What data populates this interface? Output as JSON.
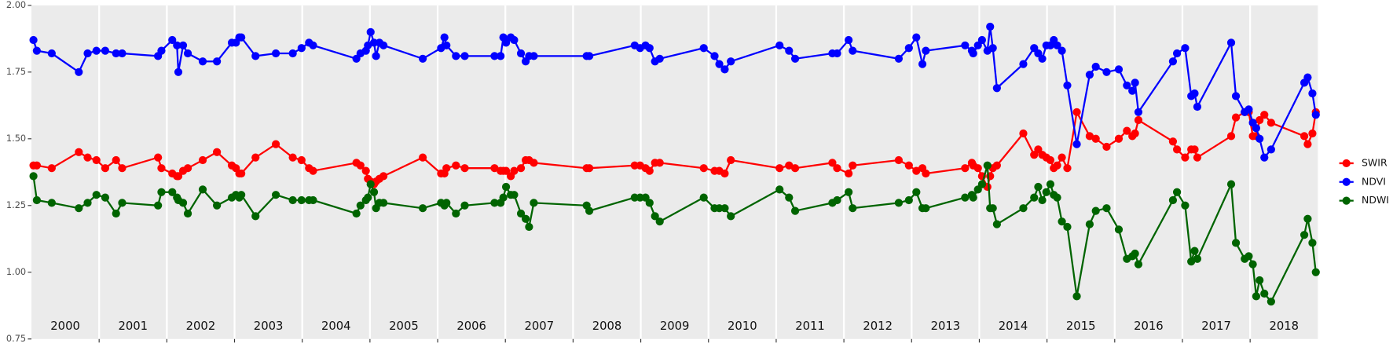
{
  "chart_data": {
    "type": "line",
    "x": [
      2000.03,
      2000.08,
      2000.3,
      2000.7,
      2000.83,
      2000.96,
      2001.09,
      2001.25,
      2001.34,
      2001.87,
      2001.92,
      2002.08,
      2002.15,
      2002.17,
      2002.24,
      2002.31,
      2002.53,
      2002.74,
      2002.96,
      2003.02,
      2003.07,
      2003.1,
      2003.31,
      2003.61,
      2003.86,
      2003.99,
      2004.1,
      2004.16,
      2004.8,
      2004.86,
      2004.94,
      2004.97,
      2005.01,
      2005.06,
      2005.09,
      2005.14,
      2005.2,
      2005.78,
      2006.05,
      2006.1,
      2006.13,
      2006.27,
      2006.4,
      2006.84,
      2006.93,
      2006.97,
      2007.01,
      2007.08,
      2007.13,
      2007.23,
      2007.3,
      2007.35,
      2007.42,
      2008.2,
      2008.24,
      2008.91,
      2008.99,
      2009.07,
      2009.13,
      2009.21,
      2009.28,
      2009.93,
      2010.09,
      2010.16,
      2010.24,
      2010.33,
      2011.05,
      2011.19,
      2011.28,
      2011.83,
      2011.9,
      2012.07,
      2012.13,
      2012.81,
      2012.96,
      2013.07,
      2013.16,
      2013.21,
      2013.79,
      2013.89,
      2013.91,
      2013.98,
      2014.04,
      2014.12,
      2014.16,
      2014.2,
      2014.26,
      2014.65,
      2014.81,
      2014.87,
      2014.93,
      2014.99,
      2015.05,
      2015.1,
      2015.15,
      2015.22,
      2015.3,
      2015.44,
      2015.63,
      2015.72,
      2015.88,
      2016.06,
      2016.18,
      2016.26,
      2016.3,
      2016.35,
      2016.86,
      2016.92,
      2017.04,
      2017.13,
      2017.18,
      2017.22,
      2017.72,
      2017.79,
      2017.92,
      2017.98,
      2018.04,
      2018.09,
      2018.14,
      2018.21,
      2018.31,
      2018.8,
      2018.85,
      2018.92,
      2018.97
    ],
    "series": [
      {
        "name": "SWIR",
        "color": "#ff0000",
        "values": [
          1.4,
          1.4,
          1.39,
          1.45,
          1.43,
          1.42,
          1.39,
          1.42,
          1.39,
          1.43,
          1.39,
          1.37,
          1.36,
          1.36,
          1.38,
          1.39,
          1.42,
          1.45,
          1.4,
          1.39,
          1.37,
          1.37,
          1.43,
          1.48,
          1.43,
          1.42,
          1.39,
          1.38,
          1.41,
          1.4,
          1.38,
          1.35,
          1.34,
          1.33,
          1.34,
          1.35,
          1.36,
          1.43,
          1.37,
          1.37,
          1.39,
          1.4,
          1.39,
          1.39,
          1.38,
          1.38,
          1.38,
          1.36,
          1.38,
          1.39,
          1.42,
          1.42,
          1.41,
          1.39,
          1.39,
          1.4,
          1.4,
          1.39,
          1.38,
          1.41,
          1.41,
          1.39,
          1.38,
          1.38,
          1.37,
          1.42,
          1.39,
          1.4,
          1.39,
          1.41,
          1.39,
          1.37,
          1.4,
          1.42,
          1.4,
          1.38,
          1.39,
          1.37,
          1.39,
          1.41,
          1.4,
          1.39,
          1.36,
          1.32,
          1.36,
          1.39,
          1.4,
          1.52,
          1.44,
          1.46,
          1.44,
          1.43,
          1.42,
          1.39,
          1.4,
          1.43,
          1.39,
          1.6,
          1.51,
          1.5,
          1.47,
          1.5,
          1.53,
          1.51,
          1.52,
          1.57,
          1.49,
          1.46,
          1.43,
          1.46,
          1.46,
          1.43,
          1.51,
          1.58,
          1.6,
          1.6,
          1.51,
          1.51,
          1.57,
          1.59,
          1.56,
          1.51,
          1.48,
          1.52,
          1.6
        ]
      },
      {
        "name": "NDVI",
        "color": "#0000ff",
        "values": [
          1.87,
          1.83,
          1.82,
          1.75,
          1.82,
          1.83,
          1.83,
          1.82,
          1.82,
          1.81,
          1.83,
          1.87,
          1.85,
          1.75,
          1.85,
          1.82,
          1.79,
          1.79,
          1.86,
          1.86,
          1.88,
          1.88,
          1.81,
          1.82,
          1.82,
          1.84,
          1.86,
          1.85,
          1.8,
          1.82,
          1.83,
          1.85,
          1.9,
          1.86,
          1.81,
          1.86,
          1.85,
          1.8,
          1.84,
          1.88,
          1.85,
          1.81,
          1.81,
          1.81,
          1.81,
          1.88,
          1.86,
          1.88,
          1.87,
          1.82,
          1.79,
          1.81,
          1.81,
          1.81,
          1.81,
          1.85,
          1.84,
          1.85,
          1.84,
          1.79,
          1.8,
          1.84,
          1.81,
          1.78,
          1.76,
          1.79,
          1.85,
          1.83,
          1.8,
          1.82,
          1.82,
          1.87,
          1.83,
          1.8,
          1.84,
          1.88,
          1.78,
          1.83,
          1.85,
          1.83,
          1.82,
          1.85,
          1.87,
          1.83,
          1.92,
          1.84,
          1.69,
          1.78,
          1.84,
          1.82,
          1.8,
          1.85,
          1.85,
          1.87,
          1.85,
          1.83,
          1.7,
          1.48,
          1.74,
          1.77,
          1.75,
          1.76,
          1.7,
          1.68,
          1.71,
          1.6,
          1.79,
          1.82,
          1.84,
          1.66,
          1.67,
          1.62,
          1.86,
          1.66,
          1.6,
          1.61,
          1.56,
          1.54,
          1.5,
          1.43,
          1.46,
          1.71,
          1.73,
          1.67,
          1.59
        ]
      },
      {
        "name": "NDWI",
        "color": "#006400",
        "values": [
          1.36,
          1.27,
          1.26,
          1.24,
          1.26,
          1.29,
          1.28,
          1.22,
          1.26,
          1.25,
          1.3,
          1.3,
          1.28,
          1.27,
          1.26,
          1.22,
          1.31,
          1.25,
          1.28,
          1.29,
          1.28,
          1.29,
          1.21,
          1.29,
          1.27,
          1.27,
          1.27,
          1.27,
          1.22,
          1.25,
          1.27,
          1.28,
          1.33,
          1.3,
          1.24,
          1.26,
          1.26,
          1.24,
          1.26,
          1.25,
          1.26,
          1.22,
          1.25,
          1.26,
          1.26,
          1.28,
          1.32,
          1.29,
          1.29,
          1.22,
          1.2,
          1.17,
          1.26,
          1.25,
          1.23,
          1.28,
          1.28,
          1.28,
          1.26,
          1.21,
          1.19,
          1.28,
          1.24,
          1.24,
          1.24,
          1.21,
          1.31,
          1.28,
          1.23,
          1.26,
          1.27,
          1.3,
          1.24,
          1.26,
          1.27,
          1.3,
          1.24,
          1.24,
          1.28,
          1.29,
          1.28,
          1.31,
          1.33,
          1.4,
          1.24,
          1.24,
          1.18,
          1.24,
          1.28,
          1.32,
          1.27,
          1.3,
          1.33,
          1.29,
          1.28,
          1.19,
          1.17,
          0.91,
          1.18,
          1.23,
          1.24,
          1.16,
          1.05,
          1.06,
          1.07,
          1.03,
          1.27,
          1.3,
          1.25,
          1.04,
          1.08,
          1.05,
          1.33,
          1.11,
          1.05,
          1.06,
          1.03,
          0.91,
          0.97,
          0.92,
          0.89,
          1.14,
          1.2,
          1.11,
          1.0
        ]
      }
    ],
    "xlim": [
      2000,
      2019
    ],
    "xticks": [
      {
        "value": 2000.5,
        "label": "2000"
      },
      {
        "value": 2001.5,
        "label": "2001"
      },
      {
        "value": 2002.5,
        "label": "2002"
      },
      {
        "value": 2003.5,
        "label": "2003"
      },
      {
        "value": 2004.5,
        "label": "2004"
      },
      {
        "value": 2005.5,
        "label": "2005"
      },
      {
        "value": 2006.5,
        "label": "2006"
      },
      {
        "value": 2007.5,
        "label": "2007"
      },
      {
        "value": 2008.5,
        "label": "2008"
      },
      {
        "value": 2009.5,
        "label": "2009"
      },
      {
        "value": 2010.5,
        "label": "2010"
      },
      {
        "value": 2011.5,
        "label": "2011"
      },
      {
        "value": 2012.5,
        "label": "2012"
      },
      {
        "value": 2013.5,
        "label": "2013"
      },
      {
        "value": 2014.5,
        "label": "2014"
      },
      {
        "value": 2015.5,
        "label": "2015"
      },
      {
        "value": 2016.5,
        "label": "2016"
      },
      {
        "value": 2017.5,
        "label": "2017"
      },
      {
        "value": 2018.5,
        "label": "2018"
      }
    ],
    "xgrid": [
      2001,
      2002,
      2003,
      2004,
      2005,
      2006,
      2007,
      2008,
      2009,
      2010,
      2011,
      2012,
      2013,
      2014,
      2015,
      2016,
      2017,
      2018
    ],
    "ylim": [
      0.75,
      2.0
    ],
    "yticks": [
      {
        "value": 0.75,
        "label": "0.75"
      },
      {
        "value": 1.0,
        "label": "1.00"
      },
      {
        "value": 1.25,
        "label": "1.25"
      },
      {
        "value": 1.5,
        "label": "1.50"
      },
      {
        "value": 1.75,
        "label": "1.75"
      },
      {
        "value": 2.0,
        "label": "2.00"
      }
    ],
    "legend": "right"
  }
}
